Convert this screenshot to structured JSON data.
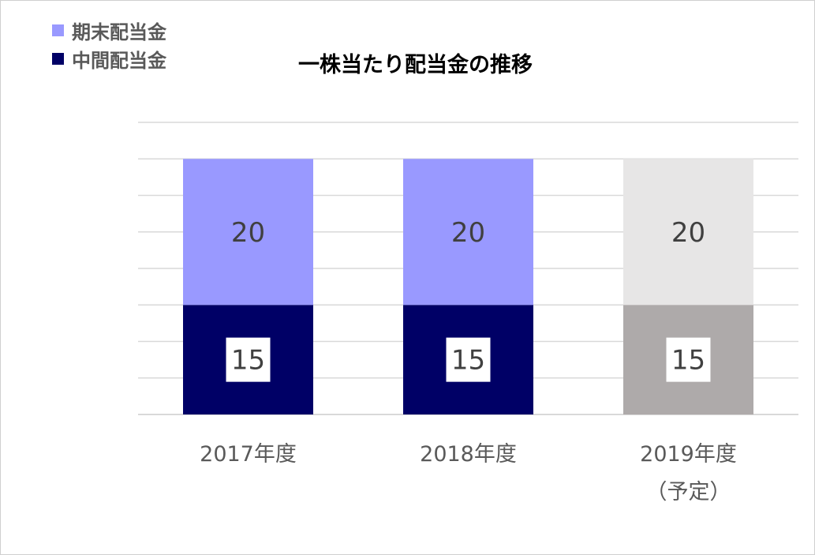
{
  "chart_data": {
    "type": "bar",
    "stacked": true,
    "title": "一株当たり配当金の推移",
    "categories": [
      [
        "2017年度"
      ],
      [
        "2018年度"
      ],
      [
        "2019年度",
        "（予定）"
      ]
    ],
    "series": [
      {
        "name": "中間配当金",
        "values": [
          15,
          15,
          15
        ],
        "color": "#000066",
        "colors": [
          "#000066",
          "#000066",
          "#aeaaaa"
        ]
      },
      {
        "name": "期末配当金",
        "values": [
          20,
          20,
          20
        ],
        "color": "#9999ff",
        "colors": [
          "#9999ff",
          "#9999ff",
          "#e7e6e6"
        ]
      }
    ],
    "ylim": [
      0,
      40
    ],
    "grid": true,
    "legend_position": "top-left",
    "data_label_color": "#404040"
  }
}
